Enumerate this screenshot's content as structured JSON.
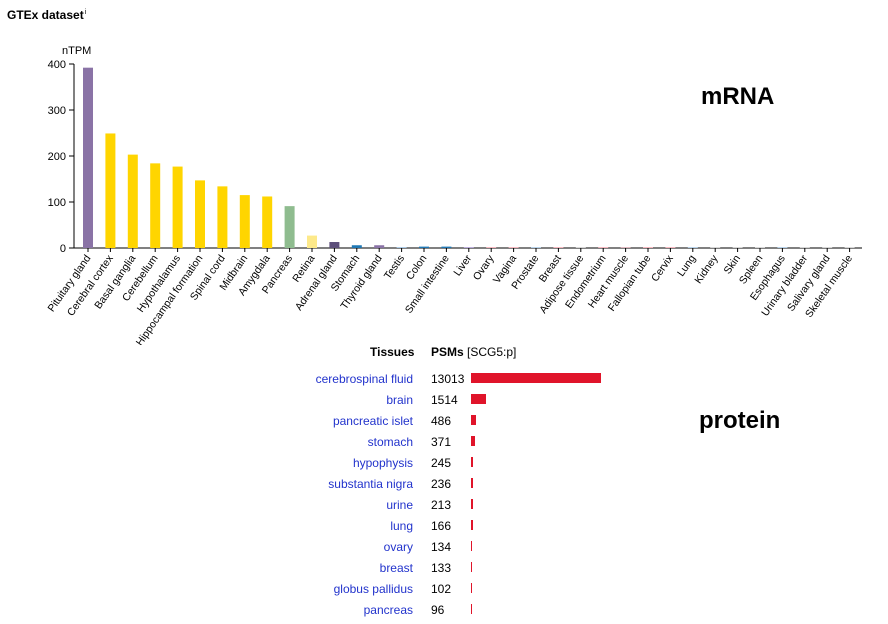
{
  "header": {
    "title": "GTEx dataset",
    "info_mark": "i"
  },
  "labels": {
    "mrna": "mRNA",
    "protein": "protein"
  },
  "protein": {
    "col_tissues": "Tissues",
    "col_psms": "PSMs",
    "col_psms_unit": "[SCG5:p]",
    "bar_color": "#e0142a",
    "link_color": "#2233cc",
    "rows": [
      {
        "tissue": "cerebrospinal fluid",
        "psms": "13013"
      },
      {
        "tissue": "brain",
        "psms": "1514"
      },
      {
        "tissue": "pancreatic islet",
        "psms": "486"
      },
      {
        "tissue": "stomach",
        "psms": "371"
      },
      {
        "tissue": "hypophysis",
        "psms": "245"
      },
      {
        "tissue": "substantia nigra",
        "psms": "236"
      },
      {
        "tissue": "urine",
        "psms": "213"
      },
      {
        "tissue": "lung",
        "psms": "166"
      },
      {
        "tissue": "ovary",
        "psms": "134"
      },
      {
        "tissue": "breast",
        "psms": "133"
      },
      {
        "tissue": "globus pallidus",
        "psms": "102"
      },
      {
        "tissue": "pancreas",
        "psms": "96"
      }
    ]
  },
  "chart_data": [
    {
      "type": "bar",
      "ylabel": "nTPM",
      "ylim": [
        0,
        400
      ],
      "yticks": [
        0,
        100,
        200,
        300,
        400
      ],
      "grid": false,
      "categories": [
        "Pituitary gland",
        "Cerebral cortex",
        "Basal ganglia",
        "Cerebellum",
        "Hypothalamus",
        "Hippocampal formation",
        "Spinal cord",
        "Midbrain",
        "Amygdala",
        "Pancreas",
        "Retina",
        "Adrenal gland",
        "Stomach",
        "Thyroid gland",
        "Testis",
        "Colon",
        "Small intestine",
        "Liver",
        "Ovary",
        "Vagina",
        "Prostate",
        "Breast",
        "Adipose tissue",
        "Endometrium",
        "Heart muscle",
        "Fallopian tube",
        "Cervix",
        "Lung",
        "Kidney",
        "Skin",
        "Spleen",
        "Esophagus",
        "Urinary bladder",
        "Salivary gland",
        "Skeletal muscle"
      ],
      "values": [
        392,
        249,
        203,
        184,
        177,
        147,
        134,
        115,
        112,
        91,
        27,
        13,
        6,
        6,
        2,
        3,
        3,
        2,
        1,
        1,
        1,
        1,
        0.5,
        0.5,
        0.5,
        0.5,
        0.5,
        0.5,
        0.5,
        0.5,
        0.5,
        0.5,
        0.5,
        0.5,
        0.5
      ],
      "colors": [
        "#8a73a6",
        "#ffd500",
        "#ffd500",
        "#ffd500",
        "#ffd500",
        "#ffd500",
        "#ffd500",
        "#ffd500",
        "#ffd500",
        "#8fbc8f",
        "#fde98a",
        "#5c4e7a",
        "#1f77b4",
        "#8a73a6",
        "#a6c8e6",
        "#1f77b4",
        "#1f77b4",
        "#b7a6d9",
        "#f4a6b0",
        "#f4a6b0",
        "#a6c8e6",
        "#f4a6b0",
        "#cccccc",
        "#f4a6b0",
        "#d9a6b0",
        "#f4a6b0",
        "#f4a6b0",
        "#a6c8e6",
        "#cccccc",
        "#cccccc",
        "#cccccc",
        "#a6c8e6",
        "#cccccc",
        "#cccccc",
        "#cccccc"
      ]
    },
    {
      "type": "bar",
      "orientation": "horizontal",
      "xlabel": "PSMs",
      "categories": [
        "cerebrospinal fluid",
        "brain",
        "pancreatic islet",
        "stomach",
        "hypophysis",
        "substantia nigra",
        "urine",
        "lung",
        "ovary",
        "breast",
        "globus pallidus",
        "pancreas"
      ],
      "values": [
        13013,
        1514,
        486,
        371,
        245,
        236,
        213,
        166,
        134,
        133,
        102,
        96
      ]
    }
  ]
}
